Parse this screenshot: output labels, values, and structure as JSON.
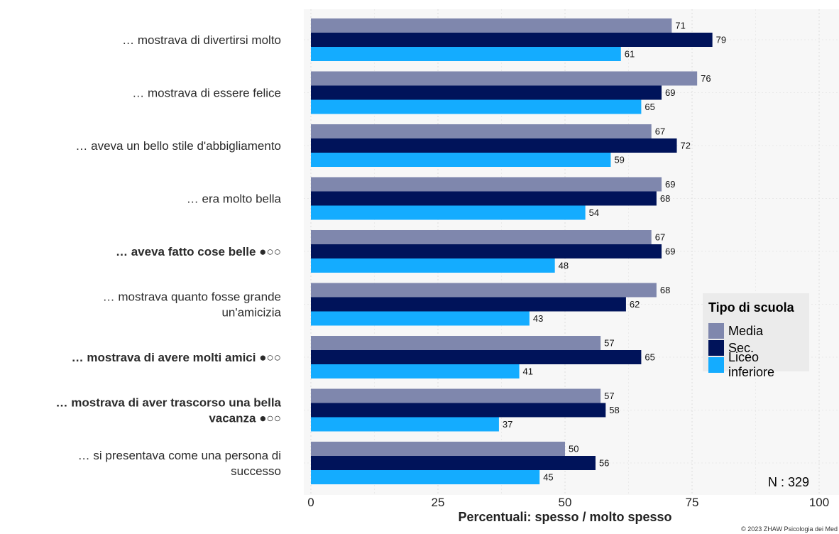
{
  "chart_data": {
    "type": "bar",
    "orientation": "horizontal",
    "categories": [
      "… mostrava di divertirsi molto",
      "… mostrava di essere felice",
      "… aveva un bello stile d'abbigliamento",
      "… era molto bella",
      "… aveva fatto cose belle ●○○",
      "… mostrava quanto fosse grande un'amicizia",
      "… mostrava di avere molti amici ●○○",
      "… mostrava di aver trascorso una bella vacanza ●○○",
      "… si presentava come una persona di successo"
    ],
    "category_label_lines": [
      [
        "… mostrava di divertirsi molto"
      ],
      [
        "… mostrava di essere felice"
      ],
      [
        "… aveva un bello stile d'abbigliamento"
      ],
      [
        "… era molto bella"
      ],
      [
        "… aveva fatto cose belle ●○○"
      ],
      [
        "… mostrava quanto fosse grande",
        "un'amicizia"
      ],
      [
        "… mostrava di avere molti amici ●○○"
      ],
      [
        "… mostrava di aver trascorso una bella",
        "vacanza ●○○"
      ],
      [
        "… si presentava come una persona di",
        "successo"
      ]
    ],
    "bold_categories": [
      false,
      false,
      false,
      false,
      true,
      false,
      true,
      true,
      false
    ],
    "series": [
      {
        "name": "Media",
        "color": "#7f87ad",
        "values": [
          71,
          76,
          67,
          69,
          67,
          68,
          57,
          57,
          50
        ]
      },
      {
        "name": "Sec.",
        "color": "#00135a",
        "values": [
          79,
          69,
          72,
          68,
          69,
          62,
          65,
          58,
          56
        ]
      },
      {
        "name": "Liceo inferiore",
        "color": "#14acff",
        "values": [
          61,
          65,
          59,
          54,
          48,
          43,
          41,
          37,
          45
        ]
      }
    ],
    "xlabel": "Percentuali:  spesso / molto spesso",
    "xlim": [
      0,
      100
    ],
    "xticks": [
      0,
      25,
      50,
      75,
      100
    ],
    "grid": true,
    "legend_title": "Tipo di scuola",
    "legend_position": "right",
    "sample_size_label": "N : 329",
    "credit": "© 2023 ZHAW Psicologia dei Med"
  }
}
